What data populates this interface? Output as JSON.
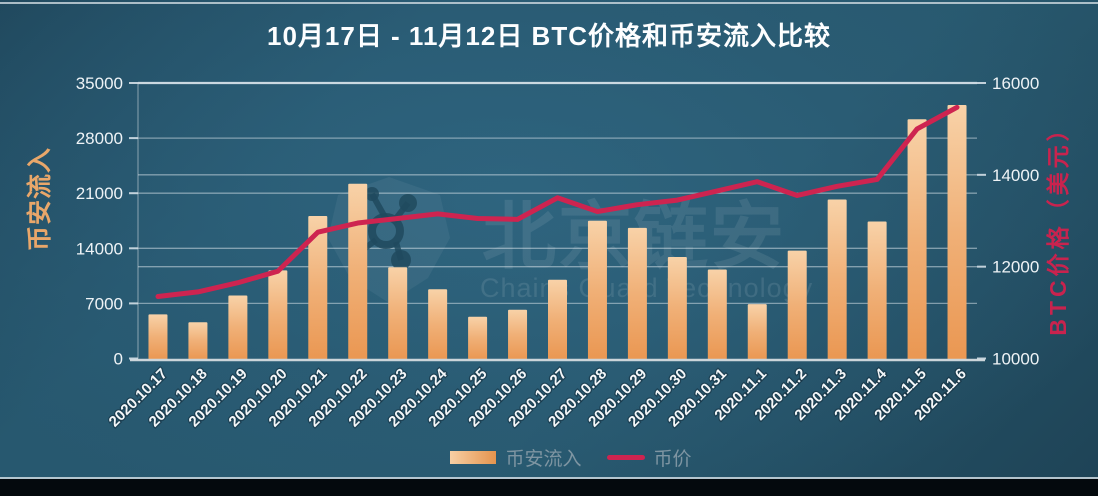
{
  "page": {
    "title": "10月17日 - 11月12日 BTC价格和币安流入比较"
  },
  "watermark": {
    "logo": "chainsguard-shield",
    "cn": "北京链安",
    "en": "Chains Guard Technology"
  },
  "legend": {
    "bars_label": "币安流入",
    "line_label": "币价"
  },
  "colors": {
    "background": "#27586f",
    "bar_top": "#f8d2a8",
    "bar_bottom": "#ea9752",
    "price_line": "#ce2450",
    "left_axis_title": "#e9a76a",
    "right_axis_title": "#c9234e",
    "tick_text": "#eef3f6",
    "gridline": "#cedae2",
    "legend_text": "#7e95a2"
  },
  "chart_data": {
    "type": "bar",
    "combo": "bar+line",
    "title": "10月17日 - 11月12日 BTC价格和币安流入比较",
    "categories": [
      "2020.10.17",
      "2020.10.18",
      "2020.10.19",
      "2020.10.20",
      "2020.10.21",
      "2020.10.22",
      "2020.10.23",
      "2020.10.24",
      "2020.10.25",
      "2020.10.26",
      "2020.10.27",
      "2020.10.28",
      "2020.10.29",
      "2020.10.30",
      "2020.10.31",
      "2020.11.1",
      "2020.11.2",
      "2020.11.3",
      "2020.11.4",
      "2020.11.5",
      "2020.11.6"
    ],
    "series": [
      {
        "name": "币安流入",
        "type": "bar",
        "axis": "left",
        "values": [
          5600,
          4600,
          8000,
          11200,
          18100,
          22200,
          11600,
          8800,
          5300,
          6200,
          10000,
          17500,
          16600,
          12900,
          11300,
          6900,
          13700,
          20200,
          17400,
          30400,
          32200
        ]
      },
      {
        "name": "币价",
        "type": "line",
        "axis": "right",
        "values": [
          11350,
          11450,
          11650,
          11900,
          12750,
          12950,
          13050,
          13150,
          13050,
          13030,
          13500,
          13200,
          13350,
          13450,
          13650,
          13850,
          13550,
          13750,
          13900,
          15000,
          15470
        ]
      }
    ],
    "left_axis": {
      "label": "币安流入",
      "min": 0,
      "max": 35000,
      "ticks": [
        0,
        7000,
        14000,
        21000,
        28000,
        35000
      ]
    },
    "right_axis": {
      "label": "BTC价格（美元）",
      "min": 10000,
      "max": 16000,
      "ticks": [
        10000,
        12000,
        14000,
        16000
      ],
      "extra_gridlines": [
        12000,
        14000
      ]
    },
    "grid": true,
    "legend_position": "bottom",
    "x_label_rotation_deg": 45
  }
}
